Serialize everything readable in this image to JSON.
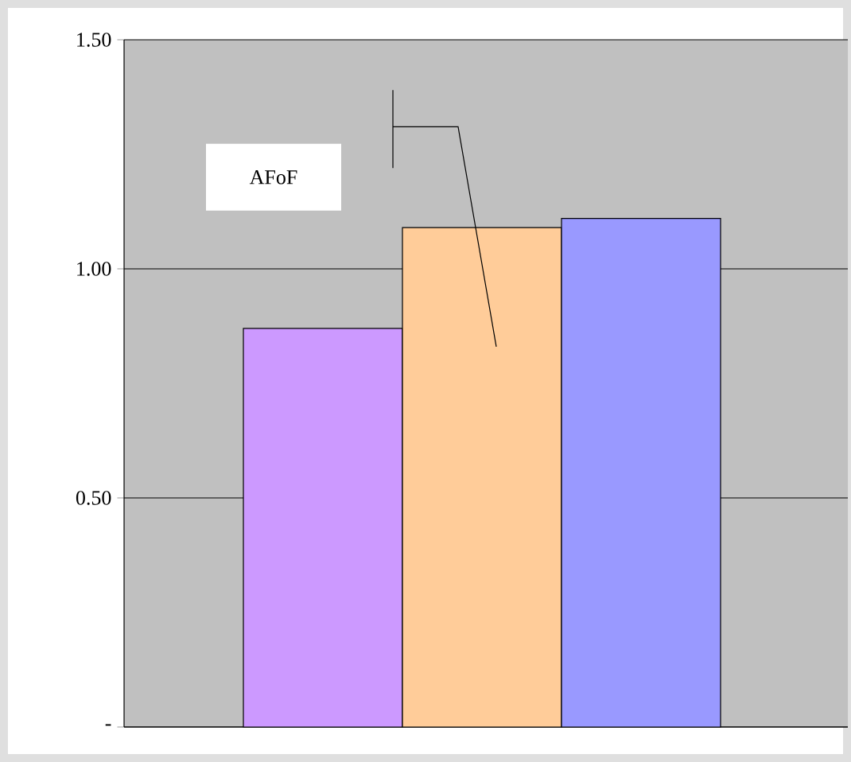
{
  "chart_data": {
    "type": "bar",
    "categories": [
      null,
      null,
      null
    ],
    "values": [
      0.87,
      1.09,
      1.11
    ],
    "colors": [
      "#cc99ff",
      "#ffcc99",
      "#9999ff"
    ],
    "ylim": [
      0,
      1.5
    ],
    "yticks": [
      {
        "value": 0,
        "label": "-"
      },
      {
        "value": 0.5,
        "label": "0.50"
      },
      {
        "value": 1.0,
        "label": "1.00"
      },
      {
        "value": 1.5,
        "label": "1.50"
      }
    ],
    "grid": "y",
    "annotations": [
      "AFoF"
    ]
  }
}
